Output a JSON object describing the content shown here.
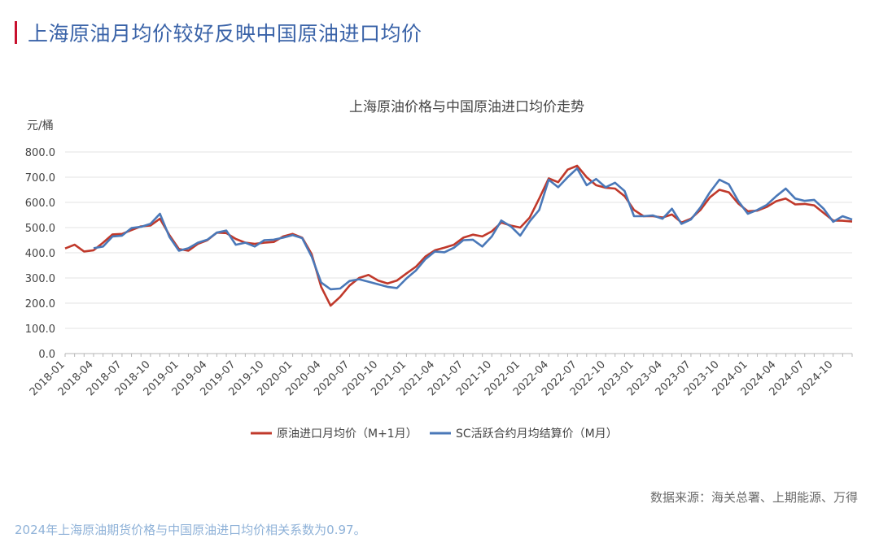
{
  "heading": "上海原油月均价较好反映中国原油进口均价",
  "source": "数据来源：海关总署、上期能源、万得",
  "footnote": "2024年上海原油期货价格与中国原油进口均价相关系数为0.97。",
  "colors": {
    "accent_bar": "#c8102e",
    "heading": "#3a63a8",
    "import": "#c0392b",
    "sc": "#4a78b8"
  },
  "chart_data": {
    "type": "line",
    "title": "上海原油价格与中国原油进口均价走势",
    "ylabel": "元/桶",
    "xlabel": "",
    "ylim": [
      0,
      800
    ],
    "yticks": [
      "0.0",
      "100.0",
      "200.0",
      "300.0",
      "400.0",
      "500.0",
      "600.0",
      "700.0",
      "800.0"
    ],
    "grid": true,
    "legend_position": "bottom",
    "x": [
      "2018-01",
      "2018-02",
      "2018-03",
      "2018-04",
      "2018-05",
      "2018-06",
      "2018-07",
      "2018-08",
      "2018-09",
      "2018-10",
      "2018-11",
      "2018-12",
      "2019-01",
      "2019-02",
      "2019-03",
      "2019-04",
      "2019-05",
      "2019-06",
      "2019-07",
      "2019-08",
      "2019-09",
      "2019-10",
      "2019-11",
      "2019-12",
      "2020-01",
      "2020-02",
      "2020-03",
      "2020-04",
      "2020-05",
      "2020-06",
      "2020-07",
      "2020-08",
      "2020-09",
      "2020-10",
      "2020-11",
      "2020-12",
      "2021-01",
      "2021-02",
      "2021-03",
      "2021-04",
      "2021-05",
      "2021-06",
      "2021-07",
      "2021-08",
      "2021-09",
      "2021-10",
      "2021-11",
      "2021-12",
      "2022-01",
      "2022-02",
      "2022-03",
      "2022-04",
      "2022-05",
      "2022-06",
      "2022-07",
      "2022-08",
      "2022-09",
      "2022-10",
      "2022-11",
      "2022-12",
      "2023-01",
      "2023-02",
      "2023-03",
      "2023-04",
      "2023-05",
      "2023-06",
      "2023-07",
      "2023-08",
      "2023-09",
      "2023-10",
      "2023-11",
      "2023-12",
      "2024-01",
      "2024-02",
      "2024-03",
      "2024-04",
      "2024-05",
      "2024-06",
      "2024-07",
      "2024-08",
      "2024-09",
      "2024-10",
      "2024-11",
      "2024-12"
    ],
    "xticks": [
      "2018-01",
      "2018-04",
      "2018-07",
      "2018-10",
      "2019-01",
      "2019-04",
      "2019-07",
      "2019-10",
      "2020-01",
      "2020-04",
      "2020-07",
      "2020-10",
      "2021-01",
      "2021-04",
      "2021-07",
      "2021-10",
      "2022-01",
      "2022-04",
      "2022-07",
      "2022-10",
      "2023-01",
      "2023-04",
      "2023-07",
      "2023-10",
      "2024-01",
      "2024-04",
      "2024-07",
      "2024-10"
    ],
    "series": [
      {
        "name": "原油进口月均价（M+1月）",
        "color": "#c0392b",
        "values": [
          417,
          432,
          405,
          410,
          440,
          473,
          475,
          490,
          505,
          508,
          535,
          470,
          415,
          408,
          435,
          450,
          480,
          478,
          455,
          440,
          435,
          440,
          443,
          465,
          475,
          460,
          395,
          265,
          190,
          225,
          270,
          300,
          312,
          290,
          278,
          290,
          318,
          345,
          385,
          410,
          420,
          432,
          460,
          472,
          465,
          485,
          520,
          508,
          500,
          540,
          615,
          695,
          680,
          730,
          745,
          700,
          668,
          658,
          655,
          625,
          570,
          545,
          545,
          540,
          552,
          520,
          535,
          570,
          620,
          650,
          640,
          595,
          565,
          567,
          582,
          605,
          615,
          592,
          594,
          588,
          558,
          528,
          527,
          524
        ]
      },
      {
        "name": "SC活跃合约月均结算价（M月）",
        "color": "#4a78b8",
        "values": [
          null,
          null,
          null,
          418,
          425,
          465,
          468,
          498,
          503,
          515,
          555,
          463,
          408,
          418,
          440,
          452,
          480,
          488,
          432,
          440,
          425,
          450,
          452,
          460,
          470,
          458,
          385,
          282,
          255,
          258,
          288,
          295,
          285,
          275,
          265,
          260,
          298,
          330,
          375,
          405,
          402,
          420,
          450,
          452,
          425,
          465,
          528,
          505,
          468,
          525,
          570,
          690,
          660,
          700,
          735,
          668,
          693,
          660,
          678,
          645,
          545,
          545,
          548,
          535,
          575,
          515,
          532,
          580,
          640,
          690,
          672,
          605,
          555,
          570,
          590,
          625,
          655,
          615,
          606,
          610,
          575,
          523,
          545,
          532
        ]
      }
    ]
  }
}
